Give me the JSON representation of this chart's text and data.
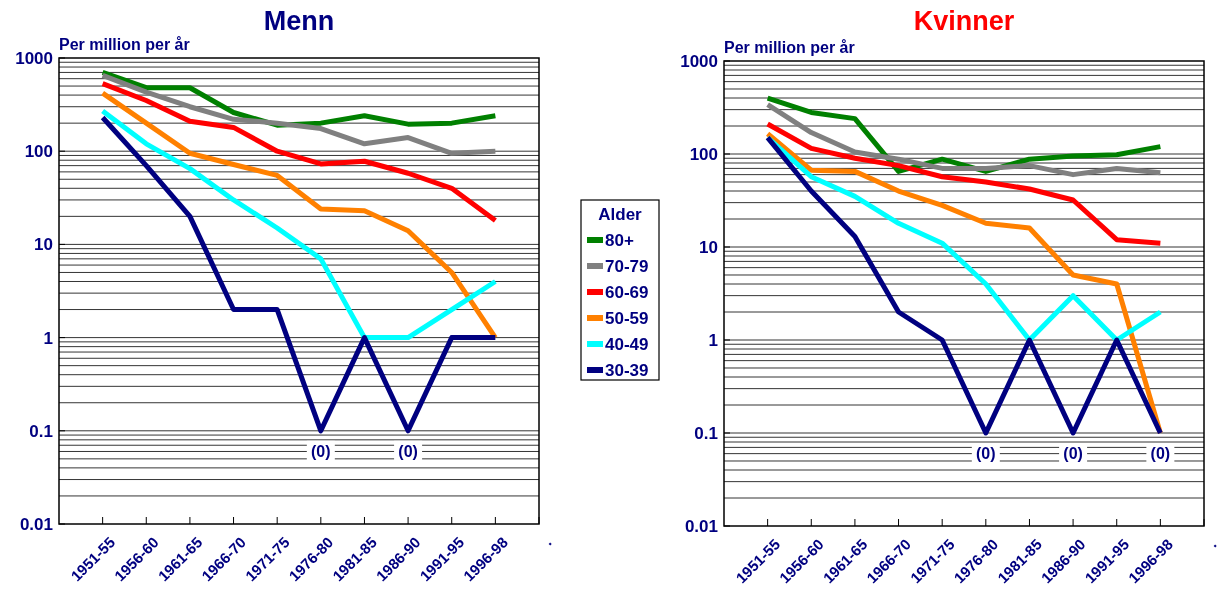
{
  "chart_data": [
    {
      "type": "line",
      "title": "Menn",
      "ylabel": "Per million per år",
      "legend_title": "Alder",
      "legend": "right",
      "log": true,
      "grid": "y",
      "categories": [
        "1951-55",
        "1956-60",
        "1961-65",
        "1966-70",
        "1971-75",
        "1976-80",
        "1981-85",
        "1986-90",
        "1991-95",
        "1996-98",
        "."
      ],
      "ylim": [
        0.01,
        1000
      ],
      "yticks": [
        0.01,
        0.1,
        1,
        10,
        100,
        1000
      ],
      "series": [
        {
          "name": "80+",
          "color": "#008000",
          "values": [
            700,
            480,
            480,
            260,
            190,
            200,
            240,
            195,
            200,
            240,
            null
          ]
        },
        {
          "name": "70-79",
          "color": "#808080",
          "values": [
            650,
            430,
            300,
            220,
            200,
            175,
            120,
            140,
            95,
            100,
            null
          ]
        },
        {
          "name": "60-69",
          "color": "#ff0000",
          "values": [
            530,
            350,
            210,
            180,
            100,
            73,
            78,
            58,
            40,
            18,
            null
          ]
        },
        {
          "name": "50-59",
          "color": "#ff8000",
          "values": [
            420,
            200,
            95,
            72,
            55,
            24,
            23,
            14,
            5,
            1,
            null
          ]
        },
        {
          "name": "40-49",
          "color": "#00ffff",
          "values": [
            270,
            120,
            65,
            30,
            15,
            7,
            1,
            1,
            2,
            4,
            null
          ]
        },
        {
          "name": "30-39",
          "color": "#000080",
          "values": [
            230,
            70,
            20,
            2,
            2,
            0.1,
            1,
            0.1,
            1,
            1,
            null
          ]
        }
      ],
      "annotations": [
        {
          "text": "(0)",
          "x": "1976-80",
          "y": 0.1
        },
        {
          "text": "(0)",
          "x": "1986-90",
          "y": 0.1
        }
      ]
    },
    {
      "type": "line",
      "title": "Kvinner",
      "ylabel": "Per million per år",
      "log": true,
      "grid": "y",
      "categories": [
        "1951-55",
        "1956-60",
        "1961-65",
        "1966-70",
        "1971-75",
        "1976-80",
        "1981-85",
        "1986-90",
        "1991-95",
        "1996-98",
        "."
      ],
      "ylim": [
        0.01,
        1000
      ],
      "yticks": [
        0.01,
        0.1,
        1,
        10,
        100,
        1000
      ],
      "series": [
        {
          "color": "#008000",
          "values": [
            400,
            280,
            240,
            65,
            88,
            65,
            88,
            95,
            98,
            120,
            null
          ]
        },
        {
          "color": "#808080",
          "values": [
            340,
            170,
            105,
            88,
            70,
            70,
            75,
            60,
            70,
            63,
            null
          ]
        },
        {
          "color": "#ff0000",
          "values": [
            210,
            115,
            90,
            75,
            57,
            50,
            42,
            32,
            12,
            11,
            null
          ]
        },
        {
          "color": "#ff8000",
          "values": [
            165,
            67,
            65,
            40,
            28,
            18,
            16,
            5,
            4,
            0.1,
            null
          ]
        },
        {
          "color": "#00ffff",
          "values": [
            150,
            57,
            35,
            18,
            11,
            4,
            1,
            3,
            1,
            2,
            null
          ]
        },
        {
          "color": "#000080",
          "values": [
            150,
            40,
            13,
            2,
            1,
            0.1,
            1,
            0.1,
            1,
            0.1,
            null
          ]
        }
      ],
      "annotations": [
        {
          "text": "(0)",
          "x": "1976-80",
          "y": 0.1
        },
        {
          "text": "(0)",
          "x": "1986-90",
          "y": 0.1
        },
        {
          "text": "(0)",
          "x": "1996-98",
          "y": 0.1
        }
      ]
    }
  ]
}
